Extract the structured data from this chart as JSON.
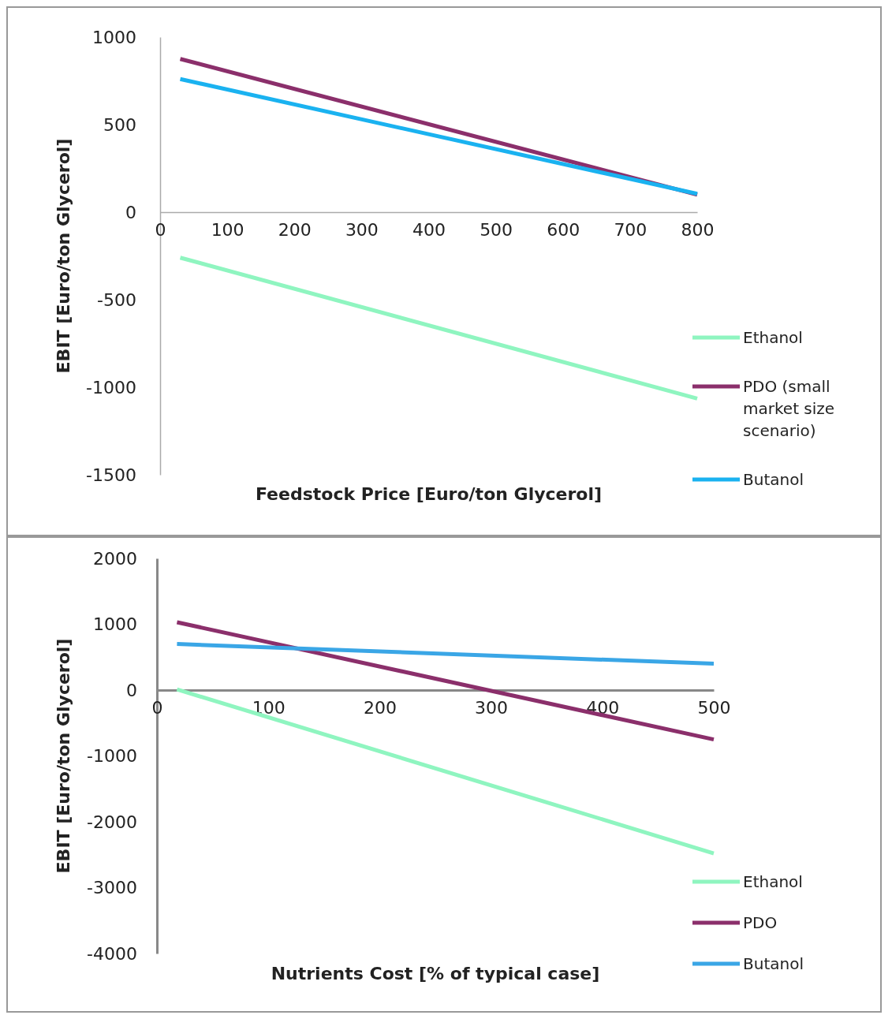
{
  "chart_data": [
    {
      "type": "line",
      "xlabel": "Feedstock Price [Euro/ton Glycerol]",
      "ylabel": "EBIT [Euro/ton Glycerol]",
      "xlim": [
        0,
        800
      ],
      "xticks": [
        0,
        100,
        200,
        300,
        400,
        500,
        600,
        700,
        800
      ],
      "ylim": [
        -1500,
        1000
      ],
      "yticks": [
        -1500,
        -1000,
        -500,
        0,
        500,
        1000
      ],
      "legend": "bottom right",
      "series": [
        {
          "name": "Ethanol",
          "color": "#8ff5c0",
          "x": [
            30,
            800
          ],
          "values": [
            -260,
            -1065
          ]
        },
        {
          "name": "PDO (small market size scenario)",
          "color": "#8b2f6b",
          "x": [
            30,
            800
          ],
          "values": [
            875,
            100
          ]
        },
        {
          "name": "Butanol",
          "color": "#1ab2f0",
          "x": [
            30,
            800
          ],
          "values": [
            760,
            105
          ]
        }
      ]
    },
    {
      "type": "line",
      "xlabel": "Nutrients Cost [% of typical case]",
      "ylabel": "EBIT [Euro/ton Glycerol]",
      "xlim": [
        0,
        500
      ],
      "xticks": [
        0,
        100,
        200,
        300,
        400,
        500
      ],
      "ylim": [
        -4000,
        2000
      ],
      "yticks": [
        -4000,
        -3000,
        -2000,
        -1000,
        0,
        1000,
        2000
      ],
      "legend": "bottom right",
      "series": [
        {
          "name": "Ethanol",
          "color": "#8ff5c0",
          "x": [
            18,
            500
          ],
          "values": [
            10,
            -2480
          ]
        },
        {
          "name": "PDO",
          "color": "#8b2f6b",
          "x": [
            18,
            500
          ],
          "values": [
            1030,
            -750
          ]
        },
        {
          "name": "Butanol",
          "color": "#3aa6e6",
          "x": [
            18,
            500
          ],
          "values": [
            700,
            400
          ]
        }
      ]
    }
  ]
}
